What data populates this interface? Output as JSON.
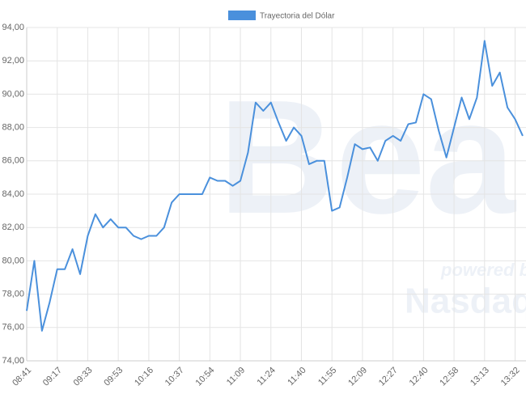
{
  "chart_data": {
    "type": "line",
    "categories": [
      "08:41",
      null,
      null,
      null,
      "09:17",
      null,
      null,
      null,
      "09:33",
      null,
      null,
      null,
      "09:53",
      null,
      null,
      null,
      "10:16",
      null,
      null,
      null,
      "10:37",
      null,
      null,
      null,
      "10:54",
      null,
      null,
      null,
      "11:09",
      null,
      null,
      null,
      "11:24",
      null,
      null,
      null,
      "11:40",
      null,
      null,
      null,
      "11:55",
      null,
      null,
      null,
      "12:09",
      null,
      null,
      null,
      "12:27",
      null,
      null,
      null,
      "12:40",
      null,
      null,
      null,
      "12:58",
      null,
      null,
      null,
      "13:13",
      null,
      null,
      null,
      "13:32",
      null
    ],
    "series": [
      {
        "name": "Trayectoria del Dólar",
        "color": "#4a90dc",
        "values": [
          77,
          80,
          75.8,
          77.5,
          79.5,
          79.5,
          80.7,
          79.2,
          81.5,
          82.8,
          82,
          82.5,
          82,
          82,
          81.5,
          81.3,
          81.5,
          81.5,
          82,
          83.5,
          84,
          84,
          84,
          84,
          85,
          84.8,
          84.8,
          84.5,
          84.8,
          86.5,
          89.5,
          89,
          89.5,
          88.3,
          87.2,
          88,
          87.5,
          85.8,
          86,
          86,
          83,
          83.2,
          85,
          87,
          86.7,
          86.8,
          86,
          87.2,
          87.5,
          87.2,
          88.2,
          88.3,
          90,
          89.7,
          87.8,
          86.2,
          88,
          89.8,
          88.5,
          89.8,
          93.2,
          90.5,
          91.3,
          89.2,
          88.5,
          87.5
        ]
      }
    ],
    "ylim": [
      74,
      94
    ],
    "yticks": [
      {
        "value": 74,
        "label": "74,00"
      },
      {
        "value": 76,
        "label": "76,00"
      },
      {
        "value": 78,
        "label": "78,00"
      },
      {
        "value": 80,
        "label": "80,00"
      },
      {
        "value": 82,
        "label": "82,00"
      },
      {
        "value": 84,
        "label": "84,00"
      },
      {
        "value": 86,
        "label": "86,00"
      },
      {
        "value": 88,
        "label": "88,00"
      },
      {
        "value": 90,
        "label": "90,00"
      },
      {
        "value": 92,
        "label": "92,00"
      },
      {
        "value": 94,
        "label": "94,00"
      }
    ],
    "grid": true,
    "legend": "top",
    "watermark": [
      "Bea",
      "powered by",
      "Nasdaq"
    ]
  }
}
